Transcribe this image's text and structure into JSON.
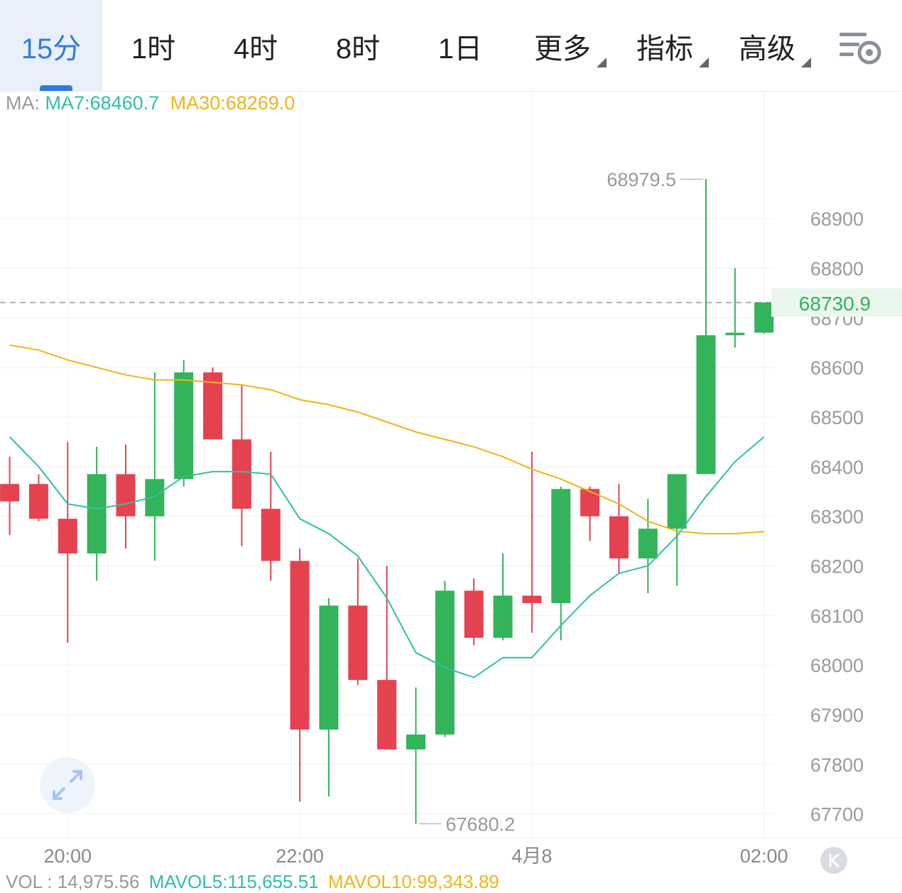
{
  "tabs": [
    {
      "label": "15分",
      "active": true,
      "dropdown": false
    },
    {
      "label": "1时",
      "active": false,
      "dropdown": false
    },
    {
      "label": "4时",
      "active": false,
      "dropdown": false
    },
    {
      "label": "8时",
      "active": false,
      "dropdown": false
    },
    {
      "label": "1日",
      "active": false,
      "dropdown": false
    },
    {
      "label": "更多",
      "active": false,
      "dropdown": true
    },
    {
      "label": "指标",
      "active": false,
      "dropdown": true
    },
    {
      "label": "高级",
      "active": false,
      "dropdown": true
    }
  ],
  "settings_icon": "chart-settings-icon",
  "ma_legend": {
    "label": "MA:",
    "ma7": "MA7:68460.7",
    "ma30": "MA30:68269.0"
  },
  "vol_legend": {
    "vol": "VOL : 14,975.56",
    "mavol5": "MAVOL5:115,655.51",
    "mavol10": "MAVOL10:99,343.89"
  },
  "colors": {
    "up": "#33b35a",
    "down": "#e5424f",
    "ma7": "#2fc0a8",
    "ma30": "#f0b41a",
    "accent": "#2f7ce0"
  },
  "chart_data": {
    "type": "candlestick",
    "y_ticks": [
      68900,
      68800,
      68700,
      68600,
      68500,
      68400,
      68300,
      68200,
      68100,
      68000,
      67900,
      67800,
      67700
    ],
    "ylim": [
      67640,
      69020
    ],
    "x_labels": [
      {
        "index": 2,
        "label": "20:00"
      },
      {
        "index": 10,
        "label": "22:00"
      },
      {
        "index": 18,
        "label": "4月8"
      },
      {
        "index": 26,
        "label": "02:00"
      }
    ],
    "current_price": 68730.9,
    "high_label": {
      "index": 24,
      "value": 68979.5,
      "text": "68979.5"
    },
    "low_label": {
      "index": 14,
      "value": 67680.2,
      "text": "67680.2"
    },
    "candles": [
      {
        "o": 68365,
        "h": 68420,
        "l": 68262,
        "c": 68330
      },
      {
        "o": 68365,
        "h": 68385,
        "l": 68290,
        "c": 68295
      },
      {
        "o": 68295,
        "h": 68450,
        "l": 68045,
        "c": 68225
      },
      {
        "o": 68225,
        "h": 68440,
        "l": 68170,
        "c": 68385
      },
      {
        "o": 68385,
        "h": 68445,
        "l": 68235,
        "c": 68300
      },
      {
        "o": 68300,
        "h": 68590,
        "l": 68210,
        "c": 68375
      },
      {
        "o": 68375,
        "h": 68615,
        "l": 68360,
        "c": 68590
      },
      {
        "o": 68590,
        "h": 68600,
        "l": 68455,
        "c": 68455
      },
      {
        "o": 68455,
        "h": 68565,
        "l": 68240,
        "c": 68315
      },
      {
        "o": 68315,
        "h": 68430,
        "l": 68170,
        "c": 68210
      },
      {
        "o": 68210,
        "h": 68235,
        "l": 67725,
        "c": 67870
      },
      {
        "o": 67870,
        "h": 68135,
        "l": 67735,
        "c": 68120
      },
      {
        "o": 68120,
        "h": 68215,
        "l": 67960,
        "c": 67970
      },
      {
        "o": 67970,
        "h": 68200,
        "l": 67830,
        "c": 67830
      },
      {
        "o": 67830,
        "h": 67955,
        "l": 67680,
        "c": 67860
      },
      {
        "o": 67860,
        "h": 68170,
        "l": 67855,
        "c": 68150
      },
      {
        "o": 68150,
        "h": 68175,
        "l": 68040,
        "c": 68055
      },
      {
        "o": 68055,
        "h": 68225,
        "l": 68050,
        "c": 68140
      },
      {
        "o": 68140,
        "h": 68430,
        "l": 68065,
        "c": 68125
      },
      {
        "o": 68125,
        "h": 68360,
        "l": 68050,
        "c": 68355
      },
      {
        "o": 68355,
        "h": 68360,
        "l": 68250,
        "c": 68300
      },
      {
        "o": 68300,
        "h": 68365,
        "l": 68185,
        "c": 68215
      },
      {
        "o": 68215,
        "h": 68335,
        "l": 68145,
        "c": 68275
      },
      {
        "o": 68275,
        "h": 68385,
        "l": 68160,
        "c": 68385
      },
      {
        "o": 68385,
        "h": 68979.5,
        "l": 68385,
        "c": 68665
      },
      {
        "o": 68665,
        "h": 68800,
        "l": 68640,
        "c": 68670
      },
      {
        "o": 68670,
        "h": 68731,
        "l": 68668,
        "c": 68730.9
      }
    ],
    "series": [
      {
        "values": [
          68460,
          68400,
          68325,
          68315,
          68325,
          68340,
          68380,
          68390,
          68390,
          68385,
          68295,
          68265,
          68220,
          68135,
          68025,
          67995,
          67975,
          68015,
          68015,
          68080,
          68140,
          68185,
          68200,
          68260,
          68340,
          68410,
          68460
        ]
      },
      {
        "values": [
          68645,
          68635,
          68615,
          68600,
          68585,
          68575,
          68575,
          68570,
          68565,
          68555,
          68535,
          68525,
          68510,
          68490,
          68470,
          68455,
          68440,
          68420,
          68395,
          68375,
          68350,
          68325,
          68290,
          68270,
          68265,
          68265,
          68269
        ]
      }
    ]
  }
}
